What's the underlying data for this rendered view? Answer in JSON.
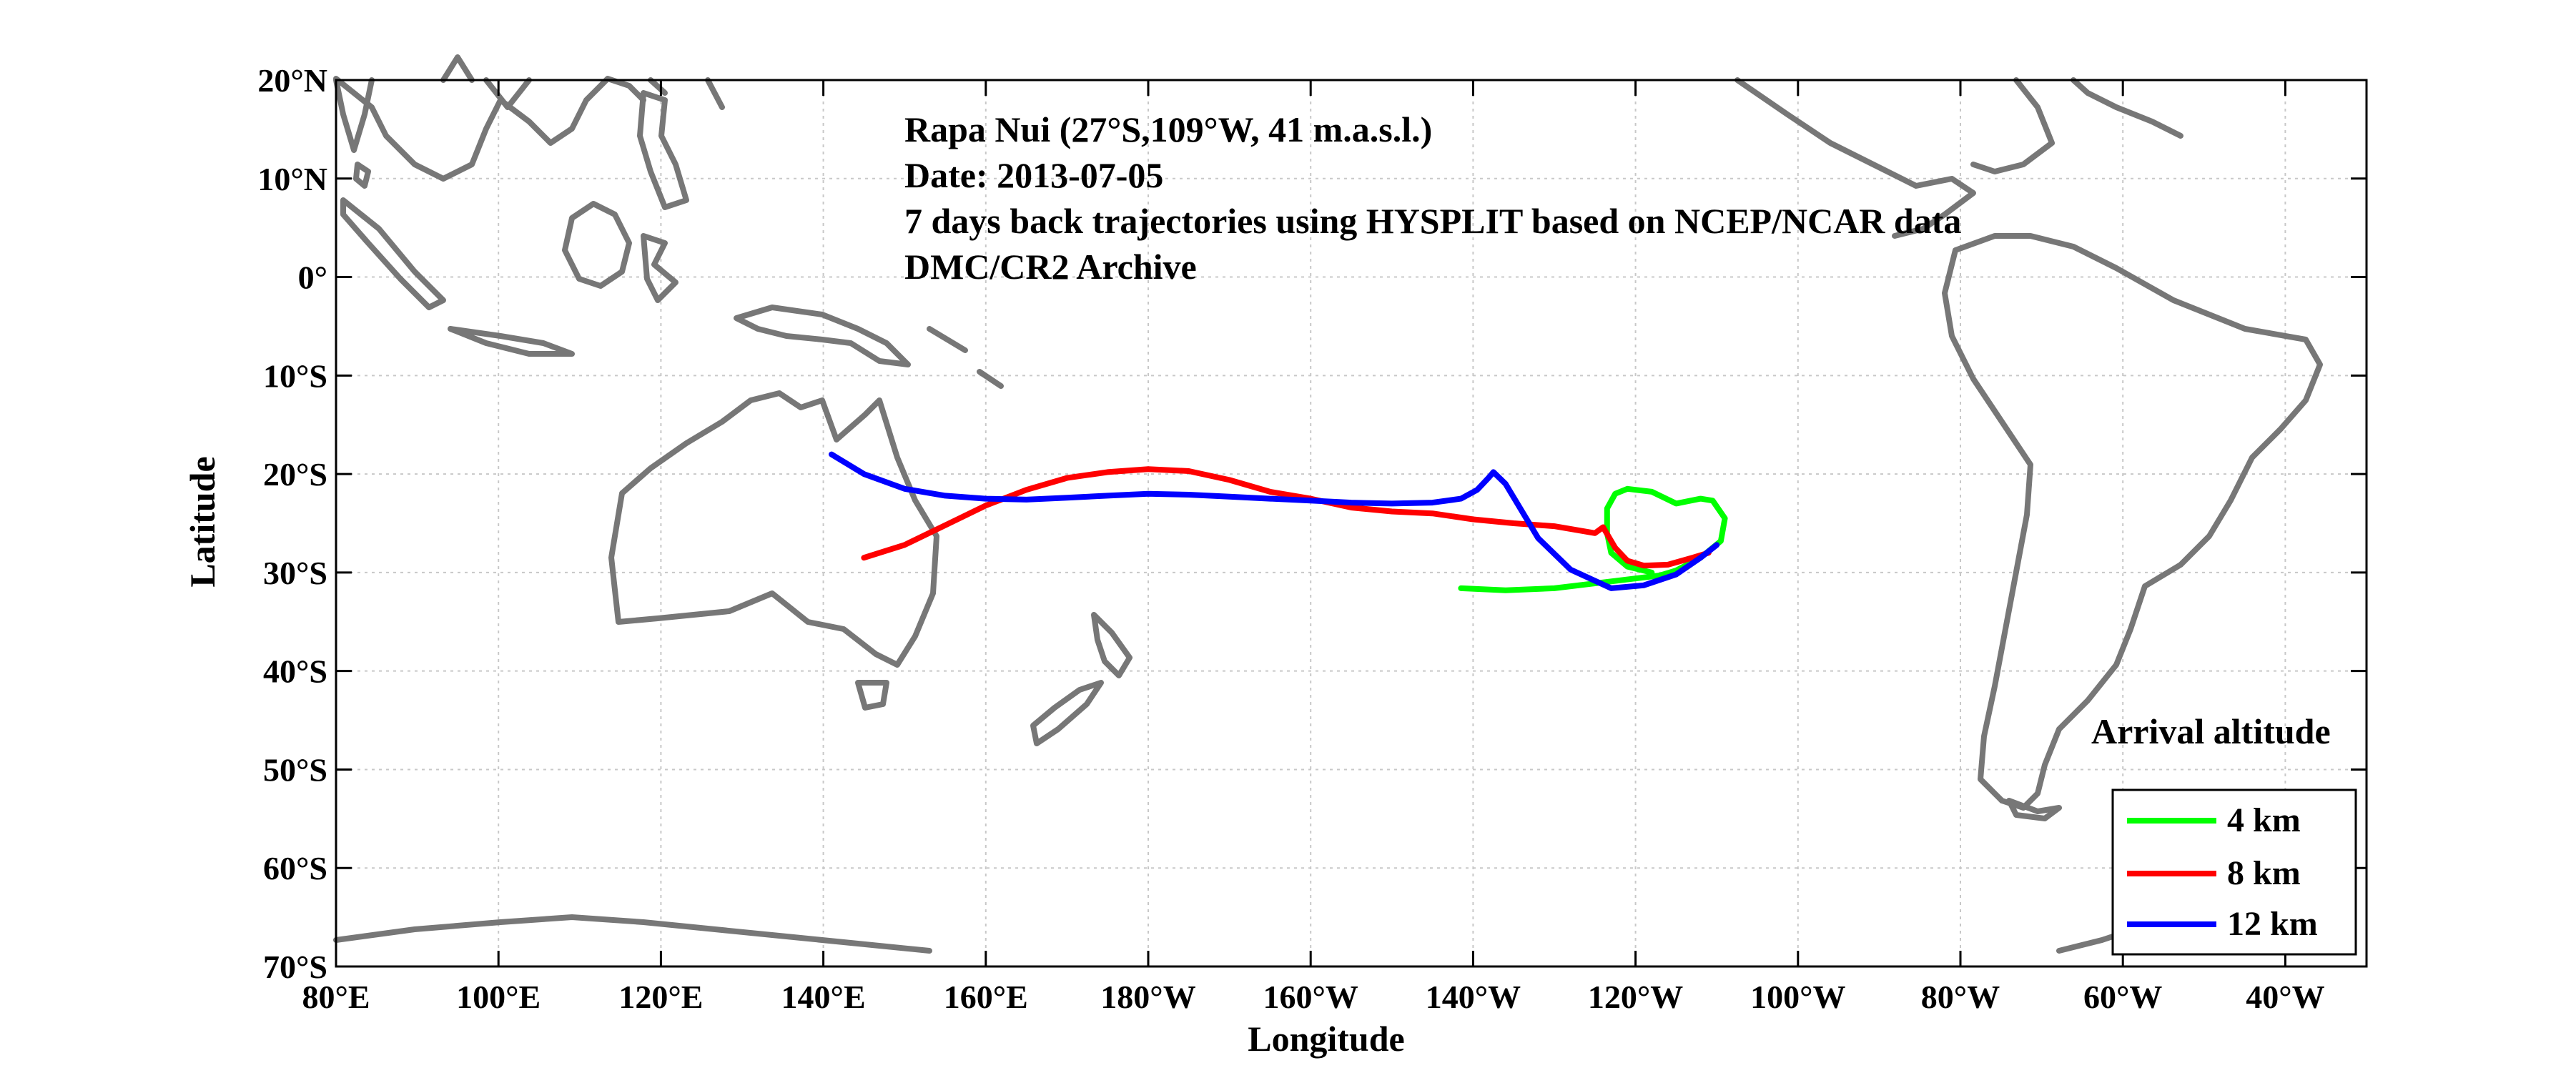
{
  "chart_data": {
    "type": "line",
    "title": "",
    "xlabel": "Longitude",
    "ylabel": "Latitude",
    "x_axis": {
      "range": [
        80,
        330
      ],
      "unit": "degrees east (0-360)",
      "tick_values": [
        80,
        100,
        120,
        140,
        160,
        180,
        200,
        220,
        240,
        260,
        280,
        300,
        320
      ],
      "tick_labels": [
        "80°E",
        "100°E",
        "120°E",
        "140°E",
        "160°E",
        "180°W",
        "160°W",
        "140°W",
        "120°W",
        "100°W",
        "80°W",
        "60°W",
        "40°W"
      ]
    },
    "y_axis": {
      "range": [
        -70,
        20
      ],
      "unit": "degrees north",
      "tick_values": [
        20,
        10,
        0,
        -10,
        -20,
        -30,
        -40,
        -50,
        -60,
        -70
      ],
      "tick_labels": [
        "20°N",
        "10°N",
        "0°",
        "10°S",
        "20°S",
        "30°S",
        "40°S",
        "50°S",
        "60°S",
        "70°S"
      ]
    },
    "grid": true,
    "annotations": [
      "Rapa Nui (27°S,109°W, 41 m.a.s.l.)",
      "Date: 2013-07-05",
      "7 days back trajectories using HYSPLIT based on NCEP/NCAR data",
      "DMC/CR2 Archive"
    ],
    "legend": {
      "title": "Arrival altitude",
      "position": "bottom-right"
    },
    "colors": {
      "land_outline": "#777777",
      "grid": "#c8c8c8",
      "axes": "#000000"
    },
    "series": [
      {
        "name": "4 km",
        "color": "#00ff00",
        "x": [
          218.5,
          224,
          230,
          236,
          240,
          243,
          245,
          248,
          250.5,
          251,
          249.5,
          248,
          245,
          242,
          239,
          237.5,
          236.5,
          236.5,
          237,
          239,
          242
        ],
        "y": [
          -31.6,
          -31.8,
          -31.6,
          -31.0,
          -30.6,
          -30.3,
          -29.8,
          -28.5,
          -26.8,
          -24.5,
          -22.7,
          -22.5,
          -23.0,
          -21.8,
          -21.5,
          -22.0,
          -23.5,
          -26.0,
          -28.0,
          -29.4,
          -30.0
        ]
      },
      {
        "name": "8 km",
        "color": "#ff0000",
        "x": [
          145,
          150,
          155,
          160,
          165,
          170,
          175,
          180,
          185,
          190,
          195,
          200,
          205,
          210,
          215,
          220,
          225,
          230,
          235,
          236,
          237.5,
          239,
          241,
          244,
          247,
          249
        ],
        "y": [
          -28.5,
          -27.2,
          -25.2,
          -23.2,
          -21.6,
          -20.4,
          -19.8,
          -19.5,
          -19.7,
          -20.6,
          -21.8,
          -22.5,
          -23.4,
          -23.8,
          -24.0,
          -24.6,
          -25.0,
          -25.3,
          -26.0,
          -25.4,
          -27.5,
          -28.8,
          -29.3,
          -29.2,
          -28.5,
          -28.0
        ]
      },
      {
        "name": "12 km",
        "color": "#0000ff",
        "x": [
          141,
          145,
          150,
          155,
          160,
          165,
          170,
          175,
          180,
          185,
          190,
          195,
          200,
          205,
          210,
          215,
          218.5,
          220.5,
          222,
          222.5,
          224,
          228,
          232,
          237,
          241,
          245,
          248,
          250
        ],
        "y": [
          -18.0,
          -20.0,
          -21.5,
          -22.2,
          -22.5,
          -22.6,
          -22.4,
          -22.2,
          -22.0,
          -22.1,
          -22.3,
          -22.5,
          -22.7,
          -22.9,
          -23.0,
          -22.9,
          -22.5,
          -21.6,
          -20.3,
          -19.8,
          -21.0,
          -26.5,
          -29.7,
          -31.6,
          -31.3,
          -30.2,
          -28.5,
          -27.2
        ]
      }
    ]
  }
}
